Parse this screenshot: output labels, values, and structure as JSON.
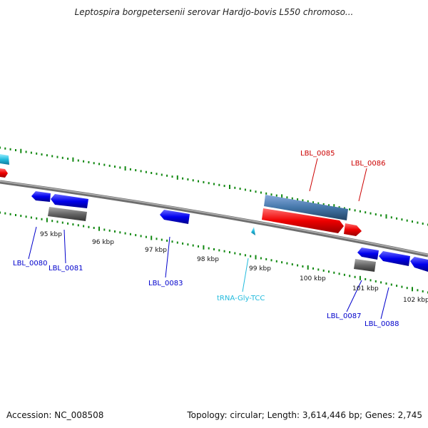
{
  "title": "Leptospira borgpetersenii serovar Hardjo-bovis L550 chromoso...",
  "footer": {
    "accession_label": "Accession:",
    "accession_value": "NC_008508",
    "topology_text": "Topology: circular; Length: 3,614,446 bp; Genes: 2,745"
  },
  "colors": {
    "forward_gene": "#ff0000",
    "reverse_gene": "#0000ff",
    "rna_gene": "#33ccee",
    "pseudo_gene": "#666666",
    "feature_bar": "#4477aa",
    "tick_green": "#118811",
    "backbone": "#808080"
  },
  "ticks": [
    "95 kbp",
    "96 kbp",
    "97 kbp",
    "98 kbp",
    "99 kbp",
    "100 kbp",
    "101 kbp",
    "102 kbp"
  ],
  "gene_labels": [
    {
      "text": "LBL_0080",
      "kind": "reverse"
    },
    {
      "text": "LBL_0081",
      "kind": "reverse"
    },
    {
      "text": "LBL_0083",
      "kind": "reverse"
    },
    {
      "text": "tRNA-Gly-TCC",
      "kind": "rna"
    },
    {
      "text": "LBL_0085",
      "kind": "forward"
    },
    {
      "text": "LBL_0086",
      "kind": "forward"
    },
    {
      "text": "LBL_0087",
      "kind": "reverse"
    },
    {
      "text": "LBL_0088",
      "kind": "reverse"
    }
  ]
}
